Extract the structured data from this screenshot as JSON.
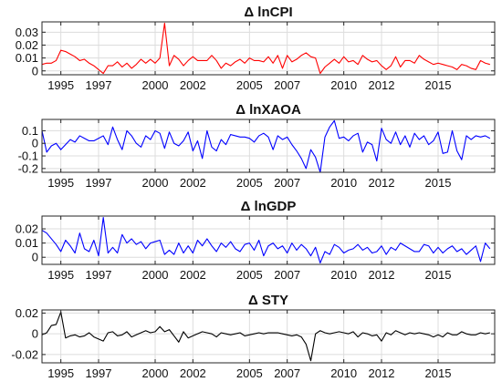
{
  "chart_data": [
    {
      "type": "line",
      "title": "Δ lnCPI",
      "color": "#ff0000",
      "ylim": [
        -0.003,
        0.038
      ],
      "yticks": [
        0,
        0.01,
        0.02,
        0.03
      ],
      "ytick_labels": [
        "0",
        "0.01",
        "0.02",
        "0.03"
      ],
      "xlim": [
        1994.0,
        2018.0
      ],
      "xticks": [
        1995,
        1997,
        2000,
        2002,
        2005,
        2007,
        2010,
        2012,
        2015
      ],
      "grid": true,
      "x": [
        1994.0,
        1994.25,
        1994.5,
        1994.75,
        1995.0,
        1995.25,
        1995.5,
        1995.75,
        1996.0,
        1996.25,
        1996.5,
        1996.75,
        1997.0,
        1997.25,
        1997.5,
        1997.75,
        1998.0,
        1998.25,
        1998.5,
        1998.75,
        1999.0,
        1999.25,
        1999.5,
        1999.75,
        2000.0,
        2000.25,
        2000.5,
        2000.75,
        2001.0,
        2001.25,
        2001.5,
        2001.75,
        2002.0,
        2002.25,
        2002.5,
        2002.75,
        2003.0,
        2003.25,
        2003.5,
        2003.75,
        2004.0,
        2004.25,
        2004.5,
        2004.75,
        2005.0,
        2005.25,
        2005.5,
        2005.75,
        2006.0,
        2006.25,
        2006.5,
        2006.75,
        2007.0,
        2007.25,
        2007.5,
        2007.75,
        2008.0,
        2008.25,
        2008.5,
        2008.75,
        2009.0,
        2009.25,
        2009.5,
        2009.75,
        2010.0,
        2010.25,
        2010.5,
        2010.75,
        2011.0,
        2011.25,
        2011.5,
        2011.75,
        2012.0,
        2012.25,
        2012.5,
        2012.75,
        2013.0,
        2013.25,
        2013.5,
        2013.75,
        2014.0,
        2014.25,
        2014.5,
        2014.75,
        2015.0,
        2015.25,
        2015.5,
        2015.75,
        2016.0,
        2016.25,
        2016.5,
        2016.75,
        2017.0,
        2017.25,
        2017.5,
        2017.75
      ],
      "values": [
        0.005,
        0.006,
        0.006,
        0.008,
        0.016,
        0.015,
        0.013,
        0.011,
        0.008,
        0.009,
        0.006,
        0.004,
        0.001,
        -0.002,
        0.004,
        0.004,
        0.007,
        0.003,
        0.006,
        0.002,
        0.005,
        0.009,
        0.006,
        0.009,
        0.006,
        0.01,
        0.037,
        0.004,
        0.012,
        0.009,
        0.004,
        0.008,
        0.011,
        0.008,
        0.008,
        0.008,
        0.012,
        0.008,
        0.002,
        0.006,
        0.004,
        0.007,
        0.009,
        0.006,
        0.01,
        0.008,
        0.008,
        0.007,
        0.011,
        0.006,
        0.012,
        0.002,
        0.012,
        0.007,
        0.009,
        0.012,
        0.014,
        0.011,
        0.01,
        -0.002,
        0.003,
        0.006,
        0.009,
        0.006,
        0.011,
        0.007,
        0.008,
        0.005,
        0.012,
        0.009,
        0.007,
        0.008,
        0.004,
        0.001,
        0.004,
        0.011,
        0.003,
        0.008,
        0.008,
        0.006,
        0.012,
        0.009,
        0.007,
        0.005,
        0.006,
        0.005,
        0.004,
        0.003,
        0.001,
        0.005,
        0.004,
        0.002,
        0.001,
        0.008,
        0.006,
        0.005
      ]
    },
    {
      "type": "line",
      "title": "Δ lnXAOA",
      "color": "#0000ff",
      "ylim": [
        -0.23,
        0.19
      ],
      "yticks": [
        -0.2,
        -0.1,
        0,
        0.1
      ],
      "ytick_labels": [
        "-0.2",
        "-0.1",
        "0",
        "0.1"
      ],
      "xlim": [
        1994.0,
        2018.0
      ],
      "xticks": [
        1995,
        1997,
        2000,
        2002,
        2005,
        2007,
        2010,
        2012,
        2015
      ],
      "grid": true,
      "x": [
        1994.0,
        1994.25,
        1994.5,
        1994.75,
        1995.0,
        1995.25,
        1995.5,
        1995.75,
        1996.0,
        1996.25,
        1996.5,
        1996.75,
        1997.0,
        1997.25,
        1997.5,
        1997.75,
        1998.0,
        1998.25,
        1998.5,
        1998.75,
        1999.0,
        1999.25,
        1999.5,
        1999.75,
        2000.0,
        2000.25,
        2000.5,
        2000.75,
        2001.0,
        2001.25,
        2001.5,
        2001.75,
        2002.0,
        2002.25,
        2002.5,
        2002.75,
        2003.0,
        2003.25,
        2003.5,
        2003.75,
        2004.0,
        2004.25,
        2004.5,
        2004.75,
        2005.0,
        2005.25,
        2005.5,
        2005.75,
        2006.0,
        2006.25,
        2006.5,
        2006.75,
        2007.0,
        2007.25,
        2007.5,
        2007.75,
        2008.0,
        2008.25,
        2008.5,
        2008.75,
        2009.0,
        2009.25,
        2009.5,
        2009.75,
        2010.0,
        2010.25,
        2010.5,
        2010.75,
        2011.0,
        2011.25,
        2011.5,
        2011.75,
        2012.0,
        2012.25,
        2012.5,
        2012.75,
        2013.0,
        2013.25,
        2013.5,
        2013.75,
        2014.0,
        2014.25,
        2014.5,
        2014.75,
        2015.0,
        2015.25,
        2015.5,
        2015.75,
        2016.0,
        2016.25,
        2016.5,
        2016.75,
        2017.0,
        2017.25,
        2017.5,
        2017.75
      ],
      "values": [
        0.1,
        -0.07,
        -0.02,
        0.0,
        -0.05,
        -0.01,
        0.03,
        0.01,
        0.06,
        0.04,
        0.02,
        0.02,
        0.04,
        0.06,
        -0.01,
        0.13,
        0.03,
        -0.05,
        0.1,
        0.06,
        0.0,
        -0.03,
        0.06,
        0.03,
        0.1,
        0.08,
        -0.04,
        0.09,
        0.0,
        -0.02,
        0.02,
        0.09,
        -0.06,
        0.02,
        -0.12,
        0.1,
        -0.03,
        -0.06,
        0.03,
        -0.01,
        0.07,
        0.06,
        0.05,
        0.05,
        0.04,
        0.01,
        0.06,
        0.08,
        0.05,
        -0.05,
        0.06,
        0.03,
        0.05,
        -0.01,
        -0.06,
        -0.12,
        -0.2,
        -0.05,
        -0.11,
        -0.23,
        0.05,
        0.13,
        0.18,
        0.04,
        0.05,
        0.02,
        0.06,
        0.08,
        -0.07,
        0.01,
        -0.01,
        -0.14,
        0.12,
        0.03,
        0.0,
        0.09,
        -0.01,
        0.06,
        -0.03,
        0.08,
        0.03,
        0.06,
        -0.01,
        0.02,
        0.09,
        -0.08,
        -0.07,
        0.1,
        -0.06,
        -0.13,
        0.06,
        0.03,
        0.06,
        0.05,
        0.06,
        0.04
      ]
    },
    {
      "type": "line",
      "title": "Δ lnGDP",
      "color": "#0000ff",
      "ylim": [
        -0.005,
        0.029
      ],
      "yticks": [
        0,
        0.01,
        0.02
      ],
      "ytick_labels": [
        "0",
        "0.01",
        "0.02"
      ],
      "xlim": [
        1994.0,
        2018.0
      ],
      "xticks": [
        1995,
        1997,
        2000,
        2002,
        2005,
        2007,
        2010,
        2012,
        2015
      ],
      "grid": true,
      "x": [
        1994.0,
        1994.25,
        1994.5,
        1994.75,
        1995.0,
        1995.25,
        1995.5,
        1995.75,
        1996.0,
        1996.25,
        1996.5,
        1996.75,
        1997.0,
        1997.25,
        1997.5,
        1997.75,
        1998.0,
        1998.25,
        1998.5,
        1998.75,
        1999.0,
        1999.25,
        1999.5,
        1999.75,
        2000.0,
        2000.25,
        2000.5,
        2000.75,
        2001.0,
        2001.25,
        2001.5,
        2001.75,
        2002.0,
        2002.25,
        2002.5,
        2002.75,
        2003.0,
        2003.25,
        2003.5,
        2003.75,
        2004.0,
        2004.25,
        2004.5,
        2004.75,
        2005.0,
        2005.25,
        2005.5,
        2005.75,
        2006.0,
        2006.25,
        2006.5,
        2006.75,
        2007.0,
        2007.25,
        2007.5,
        2007.75,
        2008.0,
        2008.25,
        2008.5,
        2008.75,
        2009.0,
        2009.25,
        2009.5,
        2009.75,
        2010.0,
        2010.25,
        2010.5,
        2010.75,
        2011.0,
        2011.25,
        2011.5,
        2011.75,
        2012.0,
        2012.25,
        2012.5,
        2012.75,
        2013.0,
        2013.25,
        2013.5,
        2013.75,
        2014.0,
        2014.25,
        2014.5,
        2014.75,
        2015.0,
        2015.25,
        2015.5,
        2015.75,
        2016.0,
        2016.25,
        2016.5,
        2016.75,
        2017.0,
        2017.25,
        2017.5,
        2017.75
      ],
      "values": [
        0.019,
        0.017,
        0.013,
        0.009,
        0.004,
        0.012,
        0.008,
        0.003,
        0.017,
        0.006,
        0.004,
        0.012,
        0.001,
        0.028,
        0.003,
        0.007,
        0.003,
        0.016,
        0.01,
        0.013,
        0.009,
        0.011,
        0.006,
        0.01,
        0.011,
        0.012,
        0.002,
        0.005,
        0.002,
        0.01,
        0.003,
        0.008,
        0.003,
        0.012,
        0.008,
        0.013,
        0.008,
        0.004,
        0.01,
        0.007,
        0.011,
        0.006,
        0.004,
        0.009,
        0.01,
        0.005,
        0.012,
        0.001,
        0.008,
        0.01,
        0.006,
        0.008,
        0.003,
        0.01,
        0.005,
        0.009,
        0.006,
        0.001,
        0.007,
        -0.004,
        0.004,
        0.002,
        0.009,
        0.007,
        0.003,
        0.005,
        0.006,
        0.009,
        0.005,
        0.007,
        0.003,
        0.004,
        0.008,
        0.002,
        0.007,
        0.005,
        0.01,
        0.008,
        0.006,
        0.004,
        0.004,
        0.009,
        0.008,
        0.003,
        0.007,
        0.003,
        0.006,
        0.008,
        0.004,
        0.006,
        0.002,
        0.005,
        0.008,
        -0.003,
        0.01,
        0.006
      ]
    },
    {
      "type": "line",
      "title": "Δ STY",
      "color": "#000000",
      "ylim": [
        -0.028,
        0.023
      ],
      "yticks": [
        -0.02,
        0,
        0.02
      ],
      "ytick_labels": [
        "-0.02",
        "0",
        "0.02"
      ],
      "xlim": [
        1994.0,
        2018.0
      ],
      "xticks": [
        1995,
        1997,
        2000,
        2002,
        2005,
        2007,
        2010,
        2012,
        2015
      ],
      "grid": true,
      "x": [
        1994.0,
        1994.25,
        1994.5,
        1994.75,
        1995.0,
        1995.25,
        1995.5,
        1995.75,
        1996.0,
        1996.25,
        1996.5,
        1996.75,
        1997.0,
        1997.25,
        1997.5,
        1997.75,
        1998.0,
        1998.25,
        1998.5,
        1998.75,
        1999.0,
        1999.25,
        1999.5,
        1999.75,
        2000.0,
        2000.25,
        2000.5,
        2000.75,
        2001.0,
        2001.25,
        2001.5,
        2001.75,
        2002.0,
        2002.25,
        2002.5,
        2002.75,
        2003.0,
        2003.25,
        2003.5,
        2003.75,
        2004.0,
        2004.25,
        2004.5,
        2004.75,
        2005.0,
        2005.25,
        2005.5,
        2005.75,
        2006.0,
        2006.25,
        2006.5,
        2006.75,
        2007.0,
        2007.25,
        2007.5,
        2007.75,
        2008.0,
        2008.25,
        2008.5,
        2008.75,
        2009.0,
        2009.25,
        2009.5,
        2009.75,
        2010.0,
        2010.25,
        2010.5,
        2010.75,
        2011.0,
        2011.25,
        2011.5,
        2011.75,
        2012.0,
        2012.25,
        2012.5,
        2012.75,
        2013.0,
        2013.25,
        2013.5,
        2013.75,
        2014.0,
        2014.25,
        2014.5,
        2014.75,
        2015.0,
        2015.25,
        2015.5,
        2015.75,
        2016.0,
        2016.25,
        2016.5,
        2016.75,
        2017.0,
        2017.25,
        2017.5,
        2017.75
      ],
      "values": [
        -0.001,
        0.001,
        0.008,
        0.009,
        0.021,
        -0.004,
        -0.002,
        -0.001,
        -0.003,
        -0.002,
        0.001,
        -0.003,
        -0.005,
        -0.007,
        0.001,
        0.002,
        -0.002,
        -0.001,
        0.002,
        -0.003,
        -0.001,
        0.001,
        0.003,
        0.001,
        0.002,
        0.007,
        0.002,
        0.004,
        -0.002,
        -0.008,
        0.002,
        -0.004,
        -0.002,
        0.0,
        0.002,
        0.001,
        0.0,
        -0.003,
        0.001,
        0.0,
        -0.001,
        0.0,
        0.001,
        -0.002,
        -0.001,
        0.0,
        0.001,
        0.0,
        0.001,
        0.001,
        0.001,
        0.0,
        -0.001,
        -0.002,
        -0.001,
        -0.003,
        -0.01,
        -0.026,
        0.0,
        0.003,
        0.001,
        0.0,
        0.001,
        0.002,
        0.001,
        0.0,
        0.002,
        -0.003,
        0.001,
        0.0,
        -0.002,
        -0.001,
        -0.007,
        0.001,
        -0.001,
        0.003,
        0.001,
        -0.001,
        0.001,
        0.0,
        0.001,
        0.0,
        -0.001,
        -0.003,
        -0.001,
        -0.003,
        0.001,
        -0.001,
        -0.001,
        0.002,
        0.0,
        -0.001,
        -0.001,
        0.001,
        0.0,
        0.001
      ]
    }
  ]
}
